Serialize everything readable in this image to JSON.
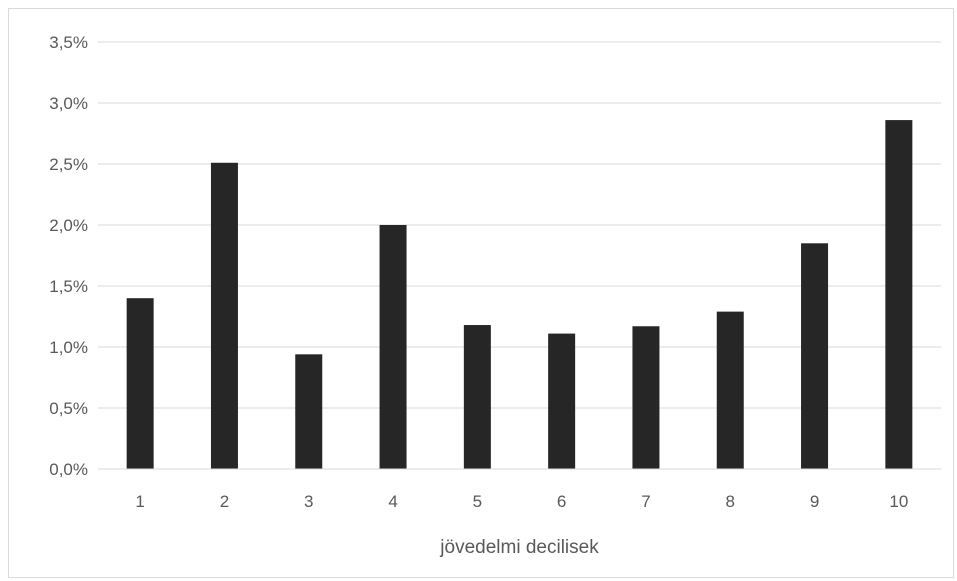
{
  "chart_data": {
    "type": "bar",
    "xlabel": "jövedelmi decilisek",
    "ylabel": "",
    "categories": [
      "1",
      "2",
      "3",
      "4",
      "5",
      "6",
      "7",
      "8",
      "9",
      "10"
    ],
    "values": [
      1.4,
      2.51,
      0.94,
      2.0,
      1.18,
      1.11,
      1.17,
      1.29,
      1.85,
      2.86
    ],
    "ylim": [
      0,
      3.5
    ],
    "yticks": [
      "0,0%",
      "0,5%",
      "1,0%",
      "1,5%",
      "2,0%",
      "2,5%",
      "3,0%",
      "3,5%"
    ],
    "unit": "%",
    "grid": true,
    "legend": "none",
    "bar_color": "#262626",
    "grid_color": "#d9d9d9"
  }
}
